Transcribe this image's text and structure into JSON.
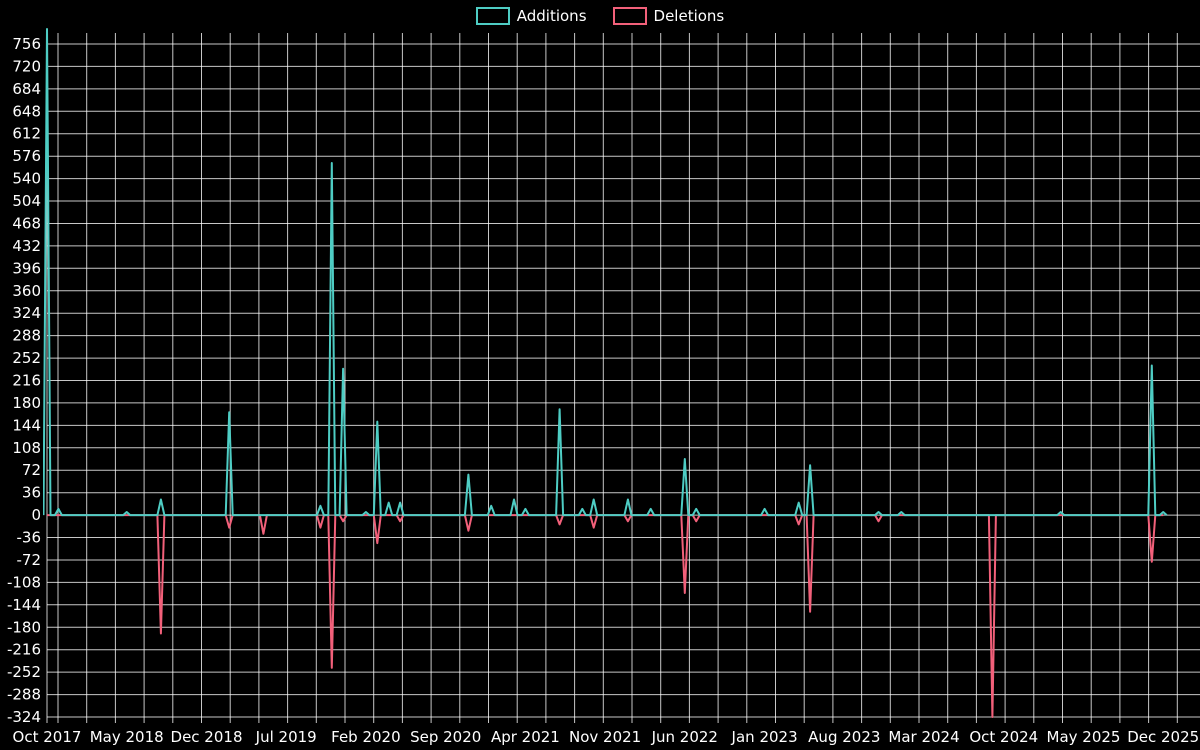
{
  "colors": {
    "background": "#000000",
    "text": "#ffffff",
    "grid": "#ffffff",
    "additions": "#4ecdc4",
    "deletions": "#f2607a"
  },
  "legend": {
    "items": [
      {
        "label": "Additions",
        "color": "#4ecdc4"
      },
      {
        "label": "Deletions",
        "color": "#f2607a"
      }
    ]
  },
  "chart_data": {
    "type": "line",
    "title": "",
    "xlabel": "",
    "ylabel": "",
    "grid": true,
    "legend_position": "top-center",
    "x_axis": {
      "interval": "monthly",
      "start": "Oct 2017",
      "end": "Dec 2025",
      "tick_every_months": 7,
      "tick_labels": [
        "Oct 2017",
        "May 2018",
        "Dec 2018",
        "Jul 2019",
        "Feb 2020",
        "Sep 2020",
        "Apr 2021",
        "Nov 2021",
        "Jun 2022",
        "Jan 2023",
        "Aug 2023",
        "Mar 2024",
        "Oct 2024",
        "May 2025",
        "Dec 2025"
      ]
    },
    "y_axis": {
      "min": -324,
      "max": 756,
      "tick_step": 36,
      "tick_labels": [
        756,
        720,
        684,
        648,
        612,
        576,
        540,
        504,
        468,
        432,
        396,
        360,
        324,
        288,
        252,
        216,
        180,
        144,
        108,
        72,
        36,
        0,
        -36,
        -72,
        -108,
        -144,
        -180,
        -216,
        -252,
        -288,
        -324
      ]
    },
    "series": [
      {
        "name": "Additions",
        "color": "#4ecdc4",
        "values": [
          780,
          10,
          0,
          0,
          0,
          0,
          0,
          5,
          0,
          0,
          25,
          0,
          0,
          0,
          0,
          0,
          165,
          0,
          0,
          0,
          0,
          0,
          0,
          0,
          15,
          565,
          235,
          0,
          5,
          150,
          20,
          20,
          0,
          0,
          0,
          0,
          0,
          65,
          0,
          15,
          0,
          25,
          10,
          0,
          0,
          170,
          0,
          10,
          25,
          0,
          0,
          25,
          0,
          10,
          0,
          0,
          90,
          10,
          0,
          0,
          0,
          0,
          0,
          10,
          0,
          0,
          20,
          80,
          0,
          0,
          0,
          0,
          0,
          5,
          0,
          5,
          0,
          0,
          0,
          0,
          0,
          0,
          0,
          0,
          0,
          0,
          0,
          0,
          0,
          5,
          0,
          0,
          0,
          0,
          0,
          0,
          0,
          240,
          5
        ]
      },
      {
        "name": "Deletions",
        "color": "#f2607a",
        "values": [
          0,
          0,
          0,
          0,
          0,
          0,
          0,
          0,
          0,
          0,
          -190,
          0,
          0,
          0,
          0,
          0,
          -20,
          0,
          0,
          -30,
          0,
          0,
          0,
          0,
          -20,
          -245,
          -10,
          0,
          0,
          -45,
          0,
          -10,
          0,
          0,
          0,
          0,
          0,
          -25,
          0,
          0,
          0,
          0,
          0,
          0,
          0,
          -15,
          0,
          0,
          -20,
          0,
          0,
          -10,
          0,
          0,
          0,
          0,
          -125,
          -10,
          0,
          0,
          0,
          0,
          0,
          0,
          0,
          0,
          -15,
          -155,
          0,
          0,
          0,
          0,
          0,
          -10,
          0,
          0,
          0,
          0,
          0,
          0,
          0,
          0,
          0,
          -324,
          0,
          0,
          0,
          0,
          0,
          0,
          0,
          0,
          0,
          0,
          0,
          0,
          0,
          -75,
          0
        ]
      }
    ]
  }
}
